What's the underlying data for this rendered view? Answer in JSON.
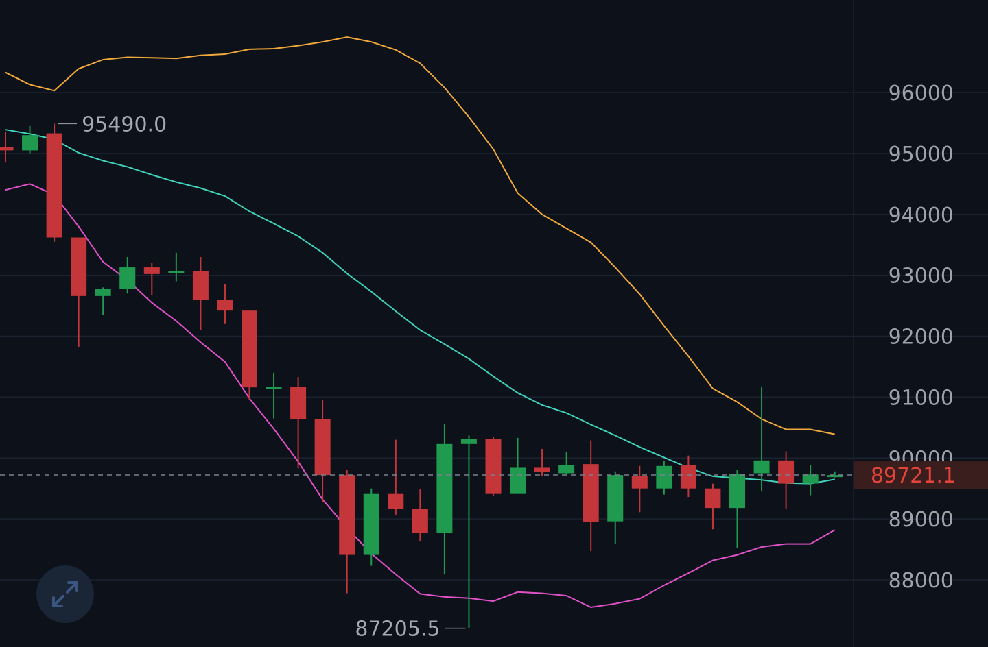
{
  "chart_data": {
    "type": "candlestick",
    "ylim": [
      87000,
      97500
    ],
    "yticks": [
      88000,
      89000,
      90000,
      91000,
      92000,
      93000,
      94000,
      95000,
      96000
    ],
    "grid": true,
    "colors": {
      "up": "#1f9a4f",
      "down": "#c4363a",
      "upper_band": "#f2a93b",
      "middle_band": "#3fd3bb",
      "lower_band": "#e052c8",
      "current_price": "#e2443b",
      "background": "#0d1119"
    },
    "candles": [
      {
        "o": 95100,
        "h": 95350,
        "l": 94850,
        "c": 95050
      },
      {
        "o": 95050,
        "h": 95450,
        "l": 95000,
        "c": 95300
      },
      {
        "o": 95330,
        "h": 95490,
        "l": 93550,
        "c": 93620
      },
      {
        "o": 93620,
        "h": 93620,
        "l": 91820,
        "c": 92660
      },
      {
        "o": 92660,
        "h": 92800,
        "l": 92350,
        "c": 92780
      },
      {
        "o": 92780,
        "h": 93300,
        "l": 92700,
        "c": 93130
      },
      {
        "o": 93130,
        "h": 93200,
        "l": 92680,
        "c": 93020
      },
      {
        "o": 93040,
        "h": 93370,
        "l": 92900,
        "c": 93070
      },
      {
        "o": 93070,
        "h": 93300,
        "l": 92100,
        "c": 92600
      },
      {
        "o": 92600,
        "h": 92850,
        "l": 92200,
        "c": 92420
      },
      {
        "o": 92420,
        "h": 92420,
        "l": 90950,
        "c": 91160
      },
      {
        "o": 91130,
        "h": 91400,
        "l": 90650,
        "c": 91170
      },
      {
        "o": 91170,
        "h": 91330,
        "l": 89830,
        "c": 90640
      },
      {
        "o": 90640,
        "h": 90950,
        "l": 89270,
        "c": 89720
      },
      {
        "o": 89720,
        "h": 89800,
        "l": 87780,
        "c": 88410
      },
      {
        "o": 88410,
        "h": 89500,
        "l": 88230,
        "c": 89410
      },
      {
        "o": 89410,
        "h": 90300,
        "l": 89070,
        "c": 89170
      },
      {
        "o": 89170,
        "h": 89490,
        "l": 88630,
        "c": 88770
      },
      {
        "o": 88770,
        "h": 90560,
        "l": 88100,
        "c": 90230
      },
      {
        "o": 90230,
        "h": 90370,
        "l": 87205.5,
        "c": 90310
      },
      {
        "o": 90310,
        "h": 90350,
        "l": 89380,
        "c": 89410
      },
      {
        "o": 89410,
        "h": 90330,
        "l": 89410,
        "c": 89840
      },
      {
        "o": 89840,
        "h": 90150,
        "l": 89700,
        "c": 89770
      },
      {
        "o": 89750,
        "h": 90100,
        "l": 89720,
        "c": 89890
      },
      {
        "o": 89900,
        "h": 90290,
        "l": 88470,
        "c": 88950
      },
      {
        "o": 88960,
        "h": 89780,
        "l": 88590,
        "c": 89720
      },
      {
        "o": 89700,
        "h": 89870,
        "l": 89110,
        "c": 89500
      },
      {
        "o": 89500,
        "h": 89950,
        "l": 89400,
        "c": 89870
      },
      {
        "o": 89880,
        "h": 90040,
        "l": 89360,
        "c": 89500
      },
      {
        "o": 89500,
        "h": 89580,
        "l": 88830,
        "c": 89180
      },
      {
        "o": 89180,
        "h": 89800,
        "l": 88520,
        "c": 89740
      },
      {
        "o": 89750,
        "h": 91170,
        "l": 89450,
        "c": 89960
      },
      {
        "o": 89960,
        "h": 90110,
        "l": 89170,
        "c": 89580
      },
      {
        "o": 89580,
        "h": 89890,
        "l": 89390,
        "c": 89730
      },
      {
        "o": 89700,
        "h": 89780,
        "l": 89680,
        "c": 89720
      }
    ],
    "upper_band": [
      96330,
      96130,
      96030,
      96390,
      96540,
      96580,
      96570,
      96560,
      96610,
      96630,
      96710,
      96720,
      96770,
      96830,
      96910,
      96830,
      96700,
      96480,
      96080,
      95600,
      95070,
      94350,
      94000,
      93770,
      93540,
      93130,
      92690,
      92170,
      91670,
      91140,
      90920,
      90640,
      90470,
      90470,
      90390
    ],
    "middle_band": [
      95390,
      95320,
      95230,
      95010,
      94880,
      94780,
      94650,
      94530,
      94430,
      94300,
      94050,
      93850,
      93640,
      93370,
      93030,
      92730,
      92410,
      92100,
      91870,
      91630,
      91340,
      91070,
      90870,
      90740,
      90550,
      90370,
      90180,
      90010,
      89840,
      89700,
      89670,
      89640,
      89590,
      89580,
      89650
    ],
    "lower_band": [
      94400,
      94500,
      94320,
      93800,
      93220,
      92920,
      92550,
      92250,
      91900,
      91580,
      90980,
      90480,
      89940,
      89320,
      88850,
      88430,
      88090,
      87770,
      87720,
      87700,
      87650,
      87800,
      87780,
      87740,
      87550,
      87610,
      87690,
      87910,
      88110,
      88320,
      88410,
      88540,
      88590,
      88590,
      88820
    ],
    "current_price": 89721.1,
    "current_price_label": "89721.1",
    "high_annotation": {
      "value": 95490.0,
      "label": "95490.0",
      "candle_index": 2
    },
    "low_annotation": {
      "value": 87205.5,
      "label": "87205.5",
      "candle_index": 19
    }
  },
  "controls": {
    "expand_icon": "expand-arrows-icon"
  }
}
